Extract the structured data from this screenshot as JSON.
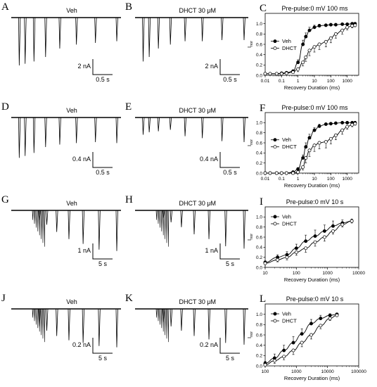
{
  "traces": [
    {
      "id": "A",
      "label": "A",
      "title": "Veh",
      "scale_y": "2 nA",
      "scale_x": "0.5 s",
      "style": "fast",
      "amps": [
        0.85,
        0.82,
        0.78,
        0.7,
        0.55,
        0.48,
        0.45,
        0.42
      ]
    },
    {
      "id": "B",
      "label": "B",
      "title": "DHCT 30 μM",
      "scale_y": "2 nA",
      "scale_x": "0.5 s",
      "style": "fast",
      "amps": [
        0.78,
        0.7,
        0.55,
        0.48,
        0.42,
        0.42,
        0.4,
        0.4
      ]
    },
    {
      "id": "D",
      "label": "D",
      "title": "Veh",
      "scale_y": "0.4 nA",
      "scale_x": "0.5 s",
      "style": "fast",
      "amps": [
        0.82,
        0.78,
        0.72,
        0.6,
        0.55,
        0.52,
        0.5,
        0.52
      ]
    },
    {
      "id": "E",
      "label": "E",
      "title": "DHCT 30 μM",
      "scale_y": "0.4 nA",
      "scale_x": "0.5 s",
      "style": "fast",
      "amps": [
        0.35,
        0.3,
        0.28,
        0.25,
        0.38,
        0.42,
        0.48,
        0.5
      ]
    },
    {
      "id": "G",
      "label": "G",
      "title": "Veh",
      "scale_y": "1 nA",
      "scale_x": "5 s",
      "style": "slow",
      "amps": [
        0.2,
        0.3,
        0.45,
        0.6,
        0.7,
        0.82,
        0.85
      ]
    },
    {
      "id": "H",
      "label": "H",
      "title": "DHCT 30 μM",
      "scale_y": "1 nA",
      "scale_x": "5 s",
      "style": "slow",
      "amps": [
        0.15,
        0.25,
        0.35,
        0.5,
        0.6,
        0.75,
        0.8
      ]
    },
    {
      "id": "J",
      "label": "J",
      "title": "Veh",
      "scale_y": "0.2 nA",
      "scale_x": "5 s",
      "style": "slow",
      "amps": [
        0.4,
        0.5,
        0.62,
        0.72,
        0.78,
        0.85,
        0.88
      ]
    },
    {
      "id": "K",
      "label": "K",
      "title": "DHCT 30 μM",
      "scale_y": "0.2 nA",
      "scale_x": "5 s",
      "style": "slow",
      "amps": [
        0.3,
        0.4,
        0.5,
        0.62,
        0.7,
        0.78,
        0.82
      ]
    }
  ],
  "chart_data": [
    {
      "id": "C",
      "label": "C",
      "type": "scatter",
      "title": "Pre-pulse:0 mV 100 ms",
      "xlabel": "Recovery Duration (ms)",
      "ylabel": "Inor",
      "ylabel_main": "I",
      "ylabel_sub": "nor",
      "xscale": "log",
      "xlim": [
        0.01,
        5000
      ],
      "ylim": [
        0,
        1.2
      ],
      "xticks": [
        0.01,
        0.1,
        1,
        10,
        100,
        1000
      ],
      "xtick_labels": [
        "0.01",
        "0.1",
        "1",
        "10",
        "100",
        "1000"
      ],
      "yticks": [
        0,
        0.2,
        0.4,
        0.6,
        0.8,
        1.0
      ],
      "ytick_labels": [
        "0.0",
        "0.2",
        "0.4",
        "0.6",
        "0.8",
        "1.0"
      ],
      "legend_position": "left-middle",
      "series": [
        {
          "name": "Veh",
          "marker": "filled-circle",
          "x": [
            0.01,
            0.02,
            0.05,
            0.1,
            0.2,
            0.5,
            1,
            2,
            3,
            5,
            10,
            20,
            50,
            100,
            200,
            500,
            1000,
            2000,
            3000
          ],
          "y": [
            0.03,
            0.03,
            0.03,
            0.04,
            0.05,
            0.08,
            0.25,
            0.6,
            0.75,
            0.87,
            0.93,
            0.96,
            0.97,
            0.98,
            0.98,
            0.99,
            0.99,
            1.0,
            1.0
          ],
          "err": [
            0,
            0,
            0,
            0,
            0,
            0,
            0.05,
            0.08,
            0.07,
            0.06,
            0.04,
            0.03,
            0.02,
            0.02,
            0.02,
            0.01,
            0.01,
            0.01,
            0.01
          ]
        },
        {
          "name": "DHCT",
          "marker": "open-circle",
          "x": [
            0.01,
            0.02,
            0.05,
            0.1,
            0.2,
            0.5,
            1,
            2,
            3,
            5,
            10,
            20,
            50,
            100,
            200,
            500,
            1000,
            2000,
            3000
          ],
          "y": [
            0.03,
            0.03,
            0.03,
            0.03,
            0.04,
            0.06,
            0.12,
            0.25,
            0.35,
            0.48,
            0.55,
            0.6,
            0.65,
            0.72,
            0.8,
            0.87,
            0.93,
            0.96,
            0.97
          ],
          "err": [
            0,
            0,
            0,
            0,
            0,
            0,
            0.05,
            0.07,
            0.08,
            0.1,
            0.1,
            0.1,
            0.1,
            0.09,
            0.08,
            0.07,
            0.05,
            0.04,
            0.03
          ]
        }
      ]
    },
    {
      "id": "F",
      "label": "F",
      "type": "scatter",
      "title": "Pre-pulse:0 mV 100 ms",
      "xlabel": "Recovery Duration (ms)",
      "ylabel": "Inor",
      "ylabel_main": "I",
      "ylabel_sub": "nor",
      "xscale": "log",
      "xlim": [
        0.01,
        5000
      ],
      "ylim": [
        0,
        1.2
      ],
      "xticks": [
        0.01,
        0.1,
        1,
        10,
        100,
        1000
      ],
      "xtick_labels": [
        "0.01",
        "0.1",
        "1",
        "10",
        "100",
        "1000"
      ],
      "yticks": [
        0,
        0.2,
        0.4,
        0.6,
        0.8,
        1.0
      ],
      "ytick_labels": [
        "0.0",
        "0.2",
        "0.4",
        "0.6",
        "0.8",
        "1.0"
      ],
      "legend_position": "left-middle",
      "series": [
        {
          "name": "Veh",
          "marker": "filled-circle",
          "x": [
            0.01,
            0.02,
            0.05,
            0.1,
            0.2,
            0.5,
            1,
            2,
            3,
            5,
            10,
            20,
            50,
            100,
            200,
            500,
            1000,
            2000,
            3000
          ],
          "y": [
            0.0,
            0.0,
            0.0,
            0.0,
            0.0,
            0.02,
            0.08,
            0.3,
            0.52,
            0.7,
            0.85,
            0.93,
            0.97,
            0.98,
            0.99,
            1.0,
            1.0,
            1.0,
            1.0
          ],
          "err": [
            0,
            0,
            0,
            0,
            0,
            0,
            0.03,
            0.06,
            0.08,
            0.07,
            0.05,
            0.04,
            0.02,
            0.02,
            0.01,
            0.01,
            0.01,
            0.01,
            0.01
          ]
        },
        {
          "name": "DHCT",
          "marker": "open-circle",
          "x": [
            0.01,
            0.02,
            0.05,
            0.1,
            0.2,
            0.5,
            1,
            2,
            3,
            5,
            10,
            20,
            50,
            100,
            200,
            500,
            1000,
            2000,
            3000
          ],
          "y": [
            0.0,
            0.0,
            0.0,
            0.0,
            0.0,
            0.0,
            0.02,
            0.12,
            0.3,
            0.45,
            0.55,
            0.6,
            0.62,
            0.68,
            0.75,
            0.85,
            0.92,
            0.96,
            0.98
          ],
          "err": [
            0,
            0,
            0,
            0,
            0,
            0,
            0.03,
            0.06,
            0.1,
            0.12,
            0.12,
            0.12,
            0.12,
            0.1,
            0.09,
            0.08,
            0.05,
            0.04,
            0.03
          ]
        }
      ]
    },
    {
      "id": "I",
      "label": "I",
      "type": "scatter",
      "title": "Pre-pulse:0 mV 10 s",
      "xlabel": "Recovery Duration (ms)",
      "ylabel": "Inor",
      "ylabel_main": "I",
      "ylabel_sub": "nor",
      "xscale": "log",
      "xlim": [
        10,
        10000
      ],
      "ylim": [
        0,
        1.2
      ],
      "xticks": [
        10,
        100,
        1000,
        10000
      ],
      "xtick_labels": [
        "10",
        "100",
        "1000",
        "10000"
      ],
      "yticks": [
        0,
        0.2,
        0.4,
        0.6,
        0.8,
        1.0
      ],
      "ytick_labels": [
        "0.0",
        "0.2",
        "0.4",
        "0.6",
        "0.8",
        "1.0"
      ],
      "legend_position": "left-top",
      "series": [
        {
          "name": "Veh",
          "marker": "filled-circle",
          "x": [
            10,
            25,
            50,
            100,
            200,
            400,
            800,
            1500,
            3000,
            6000
          ],
          "y": [
            0.1,
            0.2,
            0.25,
            0.38,
            0.52,
            0.62,
            0.72,
            0.82,
            0.88,
            0.92
          ],
          "err": [
            0.03,
            0.05,
            0.06,
            0.08,
            0.12,
            0.12,
            0.12,
            0.1,
            0.06,
            0.04
          ]
        },
        {
          "name": "DHCT",
          "marker": "open-circle",
          "x": [
            10,
            25,
            50,
            100,
            200,
            400,
            800,
            1500,
            3000,
            6000
          ],
          "y": [
            0.08,
            0.15,
            0.2,
            0.3,
            0.38,
            0.5,
            0.6,
            0.72,
            0.85,
            0.92
          ],
          "err": [
            0.02,
            0.04,
            0.05,
            0.06,
            0.08,
            0.08,
            0.08,
            0.06,
            0.05,
            0.04
          ]
        }
      ]
    },
    {
      "id": "L",
      "label": "L",
      "type": "scatter",
      "title": "Pre-pulse:0 mV 10 s",
      "xlabel": "Recovery Duration (ms)",
      "ylabel": "Inor",
      "ylabel_main": "I",
      "ylabel_sub": "nor",
      "xscale": "log",
      "xlim": [
        100,
        100000
      ],
      "ylim": [
        0,
        1.2
      ],
      "xticks": [
        100,
        1000,
        10000,
        100000
      ],
      "xtick_labels": [
        "100",
        "1000",
        "10000",
        "100000"
      ],
      "yticks": [
        0,
        0.2,
        0.4,
        0.6,
        0.8,
        1.0
      ],
      "ytick_labels": [
        "0.0",
        "0.2",
        "0.4",
        "0.6",
        "0.8",
        "1.0"
      ],
      "legend_position": "left-top",
      "series": [
        {
          "name": "Veh",
          "marker": "filled-circle",
          "x": [
            100,
            200,
            400,
            800,
            1500,
            3000,
            6000,
            12000,
            20000
          ],
          "y": [
            0.05,
            0.15,
            0.3,
            0.45,
            0.62,
            0.82,
            0.92,
            0.98,
            1.0
          ],
          "err": [
            0.04,
            0.08,
            0.1,
            0.12,
            0.1,
            0.08,
            0.06,
            0.03,
            0.02
          ]
        },
        {
          "name": "DHCT",
          "marker": "open-circle",
          "x": [
            100,
            200,
            400,
            800,
            1500,
            3000,
            6000,
            12000,
            20000
          ],
          "y": [
            0.02,
            0.1,
            0.18,
            0.3,
            0.45,
            0.6,
            0.78,
            0.92,
            0.98
          ],
          "err": [
            0.02,
            0.05,
            0.06,
            0.08,
            0.08,
            0.08,
            0.06,
            0.04,
            0.02
          ]
        }
      ]
    }
  ]
}
